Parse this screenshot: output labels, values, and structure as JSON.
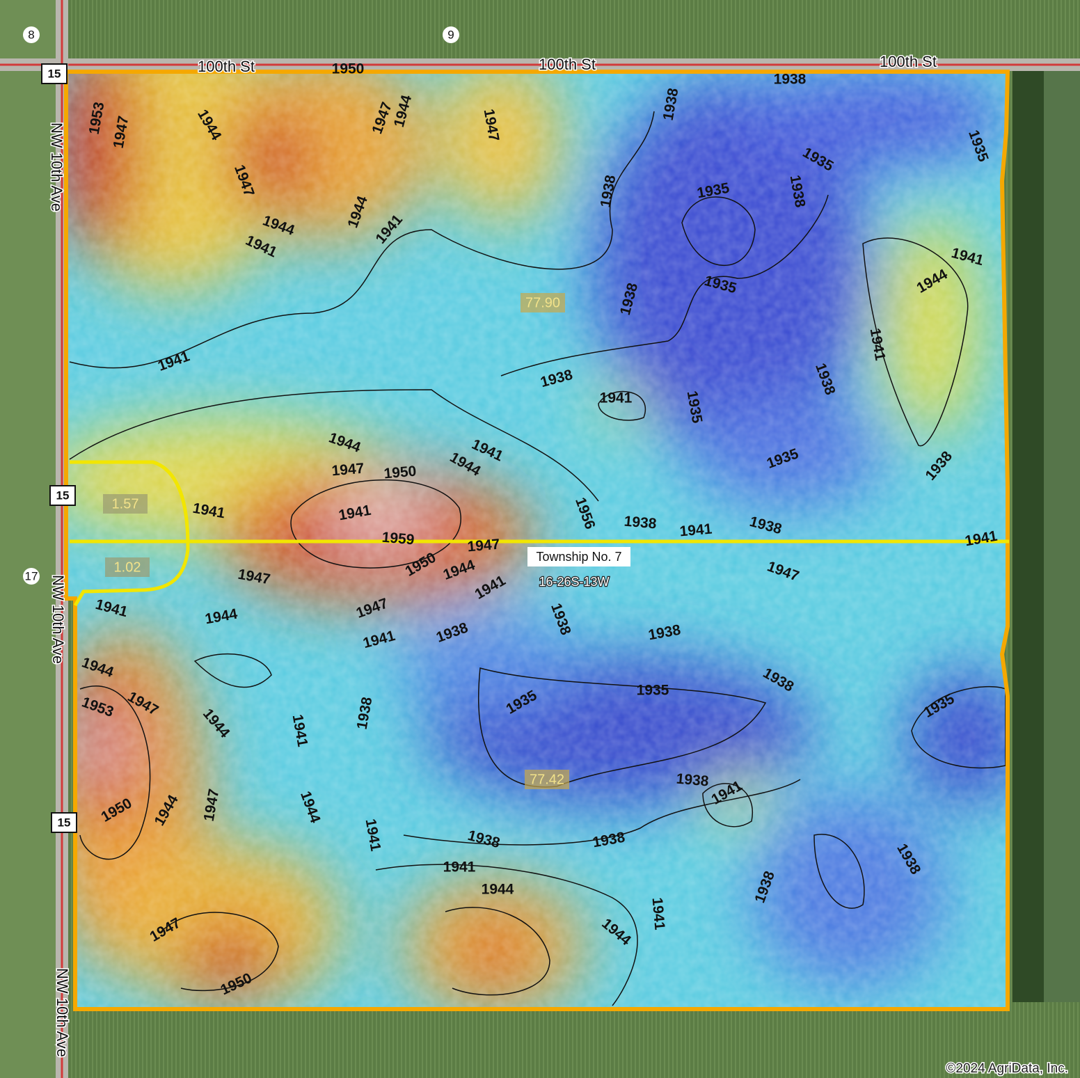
{
  "map": {
    "section_numbers": [
      "8",
      "9",
      "17"
    ],
    "road_labels": [
      "100th St",
      "100th St",
      "100th St",
      "NW 10th Ave",
      "NW 10th Ave",
      "NW 10th Ave"
    ],
    "route_shields": [
      "15",
      "15",
      "15",
      "15"
    ],
    "field_labels": [
      "77.90",
      "77.42",
      "1.57",
      "1.02"
    ],
    "township": "Township No. 7",
    "legal": "16-26S-13W",
    "copyright": "©2024 AgriData, Inc.",
    "contour_labels": [
      "1950",
      "1953",
      "1947",
      "1944",
      "1947",
      "1947",
      "1944",
      "1947",
      "1944",
      "1944",
      "1941",
      "1941",
      "1938",
      "1938",
      "1935",
      "1935",
      "1938",
      "1935",
      "1938",
      "1935",
      "1938",
      "1941",
      "1944",
      "1941",
      "1938",
      "1941",
      "1938",
      "1941",
      "1935",
      "1944",
      "1941",
      "1944",
      "1947",
      "1950",
      "1935",
      "1938",
      "1941",
      "1956",
      "1941",
      "1938",
      "1941",
      "1938",
      "1959",
      "1947",
      "1941",
      "1950",
      "1944",
      "1947",
      "1947",
      "1941",
      "1941",
      "1947",
      "1944",
      "1938",
      "1938",
      "1941",
      "1938",
      "1944",
      "1938",
      "1947",
      "1953",
      "1935",
      "1935",
      "1944",
      "1938",
      "1941",
      "1935",
      "1944",
      "1950",
      "1944",
      "1947",
      "1941",
      "1938",
      "1941",
      "1938",
      "1938",
      "1938",
      "1941",
      "1944",
      "1938",
      "1941",
      "1947",
      "1944",
      "1950"
    ]
  }
}
